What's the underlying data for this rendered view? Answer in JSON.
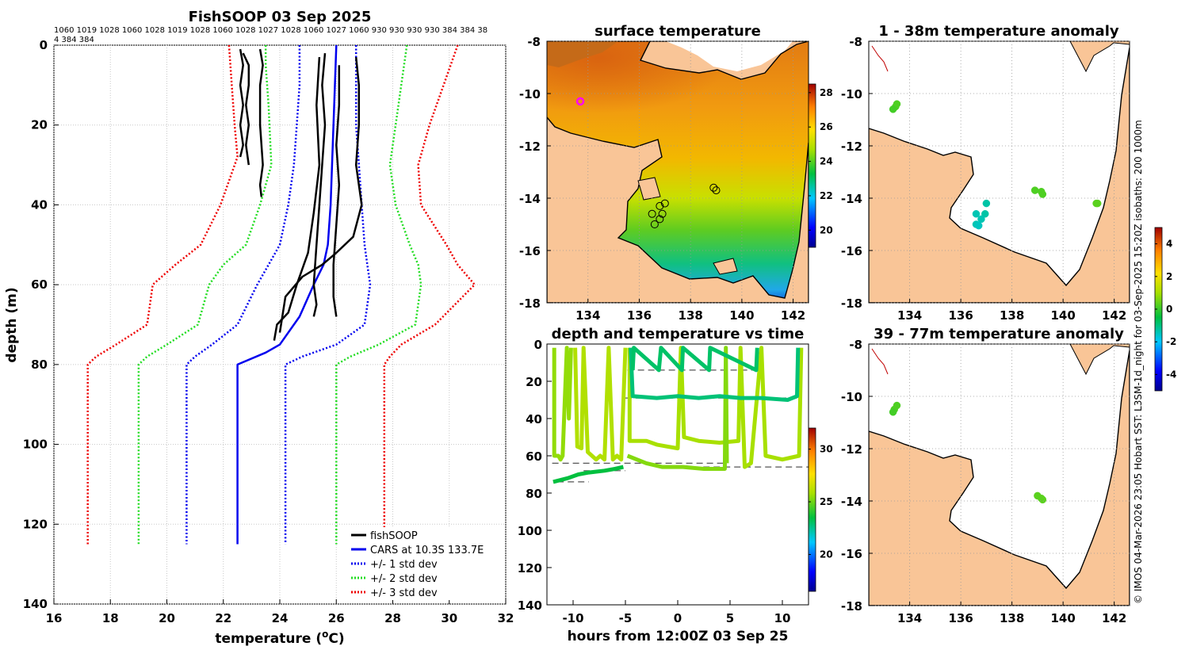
{
  "title": "FishSOOP 03 Sep 2025",
  "header_numbers": {
    "line1": "1060 1019 1028 1060 1028 1019 1028 1060 1028 1027 1028 1060 1027 1060 930 930 930 930 384 384 38",
    "line2": "4 384 384"
  },
  "credit": "© IMOS 04-Mar-2026 23:05 Hobart SST: L3SM-1d_night for 03-Sep-2025 15:20Z isobaths: 200  1000m",
  "colors": {
    "profile": "#000000",
    "cars": "#0000ee",
    "std1": "#0000ee",
    "std2": "#22dd22",
    "std3": "#ee0000",
    "land": "#f9c597",
    "coast": "#000000"
  },
  "chart_data": [
    {
      "id": "profiles",
      "type": "line",
      "title": "",
      "xlabel": "temperature (°C)",
      "ylabel": "depth (m)",
      "xlim": [
        16,
        32
      ],
      "ylim": [
        0,
        140
      ],
      "xticks": [
        16,
        18,
        20,
        22,
        24,
        26,
        28,
        30,
        32
      ],
      "yticks": [
        0,
        20,
        40,
        60,
        80,
        100,
        120,
        140
      ],
      "legend": [
        "fishSOOP",
        "CARS at 10.3S 133.7E",
        "+/- 1 std dev",
        "+/- 2 std dev",
        "+/- 3 std dev"
      ],
      "series": [
        {
          "name": "CARS",
          "color": "#0000ee",
          "style": "solid",
          "x": [
            26.0,
            25.95,
            25.9,
            25.85,
            25.8,
            25.7,
            25.55,
            25.2,
            24.7,
            24.0,
            23.5,
            22.5,
            22.5
          ],
          "y": [
            0,
            10,
            20,
            30,
            40,
            50,
            55,
            60,
            68,
            75,
            77,
            80,
            125
          ]
        },
        {
          "name": "-1 std",
          "color": "#0000ee",
          "style": "dot",
          "x": [
            24.7,
            24.7,
            24.6,
            24.5,
            24.3,
            24.0,
            23.6,
            23.2,
            22.5,
            21.6,
            21.0,
            20.7,
            20.7
          ],
          "y": [
            0,
            10,
            20,
            30,
            40,
            50,
            55,
            60,
            70,
            75,
            78,
            80,
            125
          ]
        },
        {
          "name": "+1 std",
          "color": "#0000ee",
          "style": "dot",
          "x": [
            26.7,
            26.7,
            26.7,
            26.8,
            26.9,
            27.0,
            27.1,
            27.2,
            27.0,
            26.0,
            24.8,
            24.2,
            24.2
          ],
          "y": [
            0,
            10,
            20,
            30,
            40,
            50,
            55,
            60,
            70,
            75,
            78,
            80,
            125
          ]
        },
        {
          "name": "-2 std",
          "color": "#22dd22",
          "style": "dot",
          "x": [
            23.5,
            23.5,
            23.6,
            23.7,
            23.3,
            22.8,
            22.0,
            21.5,
            21.1,
            20.0,
            19.3,
            19.0,
            19.0
          ],
          "y": [
            0,
            5,
            15,
            30,
            40,
            50,
            55,
            60,
            70,
            75,
            78,
            80,
            125
          ]
        },
        {
          "name": "+2 std",
          "color": "#22dd22",
          "style": "dot",
          "x": [
            28.5,
            28.3,
            28.1,
            27.9,
            28.1,
            28.6,
            28.9,
            29.0,
            28.8,
            27.5,
            26.5,
            26.0,
            26.0
          ],
          "y": [
            0,
            10,
            20,
            30,
            40,
            50,
            55,
            60,
            70,
            75,
            78,
            80,
            125
          ]
        },
        {
          "name": "-3 std",
          "color": "#ee0000",
          "style": "dot",
          "x": [
            22.2,
            22.3,
            22.4,
            22.5,
            21.9,
            21.2,
            20.3,
            19.5,
            19.3,
            18.2,
            17.5,
            17.2,
            17.2
          ],
          "y": [
            0,
            10,
            20,
            28,
            40,
            50,
            55,
            60,
            70,
            75,
            78,
            80,
            125
          ]
        },
        {
          "name": "+3 std",
          "color": "#ee0000",
          "style": "dot",
          "x": [
            30.3,
            29.8,
            29.3,
            28.9,
            29.0,
            29.9,
            30.3,
            30.9,
            29.5,
            28.3,
            27.9,
            27.7,
            27.7
          ],
          "y": [
            0,
            10,
            20,
            30,
            40,
            50,
            55,
            60,
            70,
            75,
            78,
            80,
            125
          ]
        },
        {
          "name": "fishSOOP-a",
          "color": "#000000",
          "style": "solid",
          "x": [
            22.6,
            22.7,
            22.6,
            22.7,
            22.6,
            22.7,
            22.6
          ],
          "y": [
            1,
            5,
            10,
            15,
            20,
            25,
            28
          ]
        },
        {
          "name": "fishSOOP-b",
          "color": "#000000",
          "style": "solid",
          "x": [
            22.7,
            22.9,
            22.9,
            22.8,
            22.9,
            22.8,
            22.9
          ],
          "y": [
            2,
            5,
            10,
            15,
            20,
            25,
            30
          ]
        },
        {
          "name": "fishSOOP-c",
          "color": "#000000",
          "style": "solid",
          "x": [
            23.3,
            23.4,
            23.3,
            23.3,
            23.4,
            23.3,
            23.35
          ],
          "y": [
            1,
            5,
            10,
            20,
            30,
            35,
            38
          ]
        },
        {
          "name": "fishSOOP-d",
          "color": "#000000",
          "style": "solid",
          "x": [
            25.6,
            25.5,
            25.6,
            25.5,
            25.4,
            25.3,
            25.2,
            25.3,
            25.2
          ],
          "y": [
            2,
            10,
            20,
            30,
            40,
            50,
            60,
            65,
            68
          ]
        },
        {
          "name": "fishSOOP-e",
          "color": "#000000",
          "style": "solid",
          "x": [
            26.1,
            26.1,
            26.0,
            26.1,
            26.0,
            25.9,
            25.9,
            26.0
          ],
          "y": [
            5,
            15,
            25,
            35,
            45,
            55,
            63,
            68
          ]
        },
        {
          "name": "fishSOOP-f",
          "color": "#000000",
          "style": "solid",
          "x": [
            26.7,
            26.8,
            26.8,
            26.7,
            26.9,
            26.6,
            26.0,
            25.5,
            24.8,
            24.2,
            24.0
          ],
          "y": [
            3,
            10,
            20,
            30,
            40,
            48,
            52,
            55,
            58,
            63,
            72
          ]
        },
        {
          "name": "fishSOOP-g",
          "color": "#000000",
          "style": "solid",
          "x": [
            25.4,
            25.3,
            25.4,
            25.2,
            25.0,
            24.6,
            24.3,
            23.9,
            23.8
          ],
          "y": [
            3,
            15,
            30,
            42,
            52,
            60,
            67,
            70,
            74
          ]
        }
      ]
    },
    {
      "id": "surface-temperature",
      "type": "heatmap",
      "title": "surface temperature",
      "xlim": [
        132.4,
        142.6
      ],
      "ylim": [
        -18,
        -8
      ],
      "xticks": [
        134,
        136,
        138,
        140,
        142
      ],
      "yticks": [
        -8,
        -10,
        -12,
        -14,
        -16,
        -18
      ],
      "colorbar": {
        "range": [
          19,
          28.5
        ],
        "ticks": [
          20,
          22,
          24,
          26,
          28
        ]
      },
      "stations": [
        [
          136.8,
          -14.3
        ],
        [
          137.0,
          -14.2
        ],
        [
          136.5,
          -14.6
        ],
        [
          136.9,
          -14.6
        ],
        [
          136.6,
          -15.0
        ],
        [
          136.8,
          -14.8
        ],
        [
          138.9,
          -13.6
        ],
        [
          139.0,
          -13.7
        ]
      ],
      "cars_location": [
        133.7,
        -10.3
      ]
    },
    {
      "id": "depth-time",
      "type": "scatter",
      "title": "depth and temperature vs time",
      "xlabel": "hours from 12:00Z 03 Sep 25",
      "xlim": [
        -12.5,
        12.5
      ],
      "ylim": [
        0,
        140
      ],
      "xticks": [
        -10,
        -5,
        0,
        5,
        10
      ],
      "yticks": [
        0,
        20,
        40,
        60,
        80,
        100,
        120,
        140
      ],
      "colorbar": {
        "range": [
          16.5,
          32
        ],
        "ticks": [
          20,
          25,
          30
        ]
      },
      "dashed_reference_depths": [
        {
          "depth": 14,
          "from": -4.8,
          "to": 7.2
        },
        {
          "depth": 29,
          "from": -5.0,
          "to": 11.5
        },
        {
          "depth": 64,
          "from": -12.0,
          "to": 4.5
        },
        {
          "depth": 66,
          "from": -1.5,
          "to": 12.5
        },
        {
          "depth": 68,
          "from": -9.0,
          "to": -5.0
        },
        {
          "depth": 74,
          "from": -11.5,
          "to": -8.5
        }
      ]
    },
    {
      "id": "anomaly-1-38m",
      "type": "scatter",
      "title": "1 - 38m temperature anomaly",
      "xlim": [
        132.4,
        142.6
      ],
      "ylim": [
        -18,
        -8
      ],
      "xticks": [
        134,
        136,
        138,
        140,
        142
      ],
      "yticks": [
        -8,
        -10,
        -12,
        -14,
        -16,
        -18
      ],
      "points": [
        {
          "lon": 133.5,
          "lat": -10.4,
          "anom": 0.2
        },
        {
          "lon": 133.45,
          "lat": -10.5,
          "anom": 0.2
        },
        {
          "lon": 133.35,
          "lat": -10.6,
          "anom": 0.1
        },
        {
          "lon": 138.9,
          "lat": -13.7,
          "anom": 0.2
        },
        {
          "lon": 139.15,
          "lat": -13.75,
          "anom": 0.2
        },
        {
          "lon": 139.2,
          "lat": -13.85,
          "anom": 0.2
        },
        {
          "lon": 141.35,
          "lat": -14.2,
          "anom": 0.3
        },
        {
          "lon": 141.3,
          "lat": -14.2,
          "anom": 0.3
        },
        {
          "lon": 137.0,
          "lat": -14.2,
          "anom": -1.3
        },
        {
          "lon": 136.6,
          "lat": -14.6,
          "anom": -1.4
        },
        {
          "lon": 136.95,
          "lat": -14.6,
          "anom": -1.3
        },
        {
          "lon": 136.8,
          "lat": -14.8,
          "anom": -1.4
        },
        {
          "lon": 136.6,
          "lat": -15.0,
          "anom": -1.4
        },
        {
          "lon": 136.7,
          "lat": -15.05,
          "anom": -1.5
        }
      ]
    },
    {
      "id": "anomaly-39-77m",
      "type": "scatter",
      "title": "39 - 77m temperature anomaly",
      "xlim": [
        132.4,
        142.6
      ],
      "ylim": [
        -18,
        -8
      ],
      "xticks": [
        134,
        136,
        138,
        140,
        142
      ],
      "yticks": [
        -8,
        -10,
        -12,
        -14,
        -16,
        -18
      ],
      "colorbar": {
        "range": [
          -5,
          5
        ],
        "ticks": [
          -4,
          -2,
          0,
          2,
          4
        ]
      },
      "points": [
        {
          "lon": 133.5,
          "lat": -10.35,
          "anom": 0.2
        },
        {
          "lon": 133.4,
          "lat": -10.5,
          "anom": 0.2
        },
        {
          "lon": 133.35,
          "lat": -10.6,
          "anom": 0.1
        },
        {
          "lon": 139.0,
          "lat": -13.8,
          "anom": 0.3
        },
        {
          "lon": 139.15,
          "lat": -13.9,
          "anom": 0.3
        },
        {
          "lon": 139.2,
          "lat": -13.95,
          "anom": 0.3
        }
      ]
    }
  ]
}
